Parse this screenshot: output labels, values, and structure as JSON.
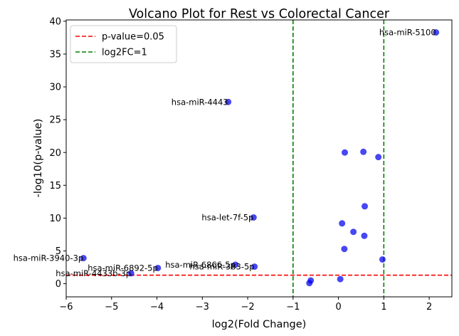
{
  "chart_data": {
    "type": "scatter",
    "title": "Volcano Plot for Rest vs Colorectal Cancer",
    "xlabel": "log2(Fold Change)",
    "ylabel": "-log10(p-value)",
    "xlim": [
      -6,
      2.5
    ],
    "ylim": [
      -2,
      40.2
    ],
    "xticks": [
      -6,
      -5,
      -4,
      -3,
      -2,
      -1,
      0,
      1,
      2
    ],
    "yticks": [
      0,
      5,
      10,
      15,
      20,
      25,
      30,
      35,
      40
    ],
    "grid": false,
    "point_color": "#0000ee",
    "points": [
      {
        "x": 2.15,
        "y": 38.3
      },
      {
        "x": -2.43,
        "y": 27.7
      },
      {
        "x": 0.14,
        "y": 20.0
      },
      {
        "x": 0.55,
        "y": 20.1
      },
      {
        "x": 0.88,
        "y": 19.3
      },
      {
        "x": 0.58,
        "y": 11.8
      },
      {
        "x": -1.87,
        "y": 10.1
      },
      {
        "x": 0.08,
        "y": 9.2
      },
      {
        "x": 0.33,
        "y": 7.9
      },
      {
        "x": 0.57,
        "y": 7.3
      },
      {
        "x": 0.13,
        "y": 5.3
      },
      {
        "x": 0.97,
        "y": 3.7
      },
      {
        "x": -5.62,
        "y": 3.9
      },
      {
        "x": -2.27,
        "y": 2.9
      },
      {
        "x": -1.85,
        "y": 2.6
      },
      {
        "x": -3.98,
        "y": 2.4
      },
      {
        "x": -4.57,
        "y": 1.6
      },
      {
        "x": 0.04,
        "y": 0.7
      },
      {
        "x": -0.61,
        "y": 0.5
      },
      {
        "x": -0.64,
        "y": 0.1
      }
    ],
    "annotations": [
      {
        "text": "hsa-miR-5100",
        "x": 2.15,
        "y": 38.3
      },
      {
        "text": "hsa-miR-4443",
        "x": -2.43,
        "y": 27.7
      },
      {
        "text": "hsa-let-7f-5p",
        "x": -1.87,
        "y": 10.1
      },
      {
        "text": "hsa-miR-3940-3p",
        "x": -5.62,
        "y": 3.9
      },
      {
        "text": "hsa-miR-6866-5p",
        "x": -2.27,
        "y": 2.9
      },
      {
        "text": "hsa-miR-383-5p",
        "x": -1.85,
        "y": 2.6
      },
      {
        "text": "hsa-miR-6892-5p",
        "x": -3.98,
        "y": 2.4
      },
      {
        "text": "hsa-miR-4433b-3p",
        "x": -4.57,
        "y": 1.6
      }
    ],
    "threshold_lines": [
      {
        "orientation": "horizontal",
        "value": 1.301,
        "color": "#ff0000",
        "style": "dashed"
      },
      {
        "orientation": "vertical",
        "value": -1,
        "color": "#008000",
        "style": "dashed"
      },
      {
        "orientation": "vertical",
        "value": 1,
        "color": "#008000",
        "style": "dashed"
      }
    ],
    "legend": {
      "placement": "upper-left",
      "entries": [
        {
          "label": "p-value=0.05",
          "color": "#ff0000",
          "style": "dashed"
        },
        {
          "label": "log2FC=1",
          "color": "#008000",
          "style": "dashed"
        }
      ]
    }
  }
}
